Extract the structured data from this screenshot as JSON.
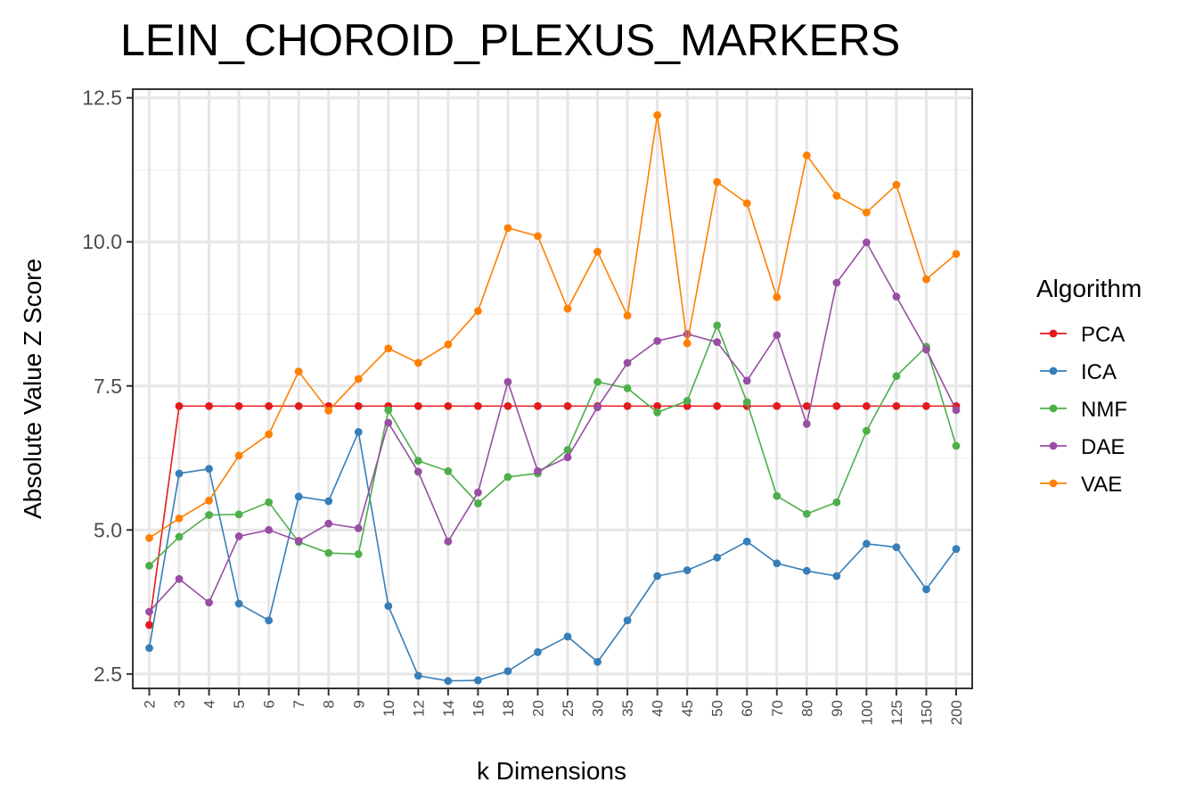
{
  "chart_data": {
    "type": "line",
    "title": "LEIN_CHOROID_PLEXUS_MARKERS",
    "xlabel": "k Dimensions",
    "ylabel": "Absolute Value Z Score",
    "x_categorical": true,
    "categories": [
      "2",
      "3",
      "4",
      "5",
      "6",
      "7",
      "8",
      "9",
      "10",
      "12",
      "14",
      "16",
      "18",
      "20",
      "25",
      "30",
      "35",
      "40",
      "45",
      "50",
      "60",
      "70",
      "80",
      "90",
      "100",
      "125",
      "150",
      "200"
    ],
    "yticks": [
      "2.5",
      "5.0",
      "7.5",
      "10.0",
      "12.5"
    ],
    "ylim": [
      2.25,
      12.65
    ],
    "grid": true,
    "legend": {
      "title": "Algorithm",
      "position": "right"
    },
    "series": [
      {
        "name": "PCA",
        "color": "#e41a1c",
        "values": [
          3.35,
          7.15,
          7.15,
          7.15,
          7.15,
          7.15,
          7.15,
          7.15,
          7.15,
          7.15,
          7.15,
          7.15,
          7.15,
          7.15,
          7.15,
          7.15,
          7.15,
          7.15,
          7.15,
          7.15,
          7.15,
          7.15,
          7.15,
          7.15,
          7.15,
          7.15,
          7.15,
          7.15
        ]
      },
      {
        "name": "ICA",
        "color": "#377eb8",
        "values": [
          2.95,
          5.98,
          6.06,
          3.72,
          3.43,
          5.58,
          5.5,
          6.7,
          3.68,
          2.47,
          2.38,
          2.39,
          2.55,
          2.88,
          3.15,
          2.71,
          3.43,
          4.2,
          4.3,
          4.52,
          4.8,
          4.42,
          4.29,
          4.2,
          4.76,
          4.7,
          3.97,
          4.67
        ]
      },
      {
        "name": "NMF",
        "color": "#4daf4a",
        "values": [
          4.38,
          4.88,
          5.26,
          5.27,
          5.48,
          4.79,
          4.6,
          4.58,
          7.08,
          6.2,
          6.02,
          5.46,
          5.92,
          5.98,
          6.39,
          7.57,
          7.46,
          7.04,
          7.24,
          8.55,
          7.22,
          5.59,
          5.28,
          5.48,
          6.72,
          7.67,
          8.18,
          6.46
        ]
      },
      {
        "name": "DAE",
        "color": "#984ea3",
        "values": [
          3.58,
          4.15,
          3.74,
          4.89,
          5.0,
          4.81,
          5.11,
          5.03,
          6.86,
          6.01,
          4.8,
          5.65,
          7.57,
          6.02,
          6.26,
          7.13,
          7.9,
          8.28,
          8.4,
          8.26,
          7.59,
          8.38,
          6.84,
          9.29,
          9.99,
          9.05,
          8.13,
          7.08
        ]
      },
      {
        "name": "VAE",
        "color": "#ff7f00",
        "values": [
          4.86,
          5.2,
          5.51,
          6.29,
          6.66,
          7.75,
          7.07,
          7.62,
          8.15,
          7.9,
          8.22,
          8.8,
          10.24,
          10.1,
          8.84,
          9.83,
          8.72,
          12.2,
          8.24,
          11.04,
          10.67,
          9.04,
          11.5,
          10.8,
          10.51,
          10.99,
          9.35,
          9.79
        ]
      }
    ]
  }
}
